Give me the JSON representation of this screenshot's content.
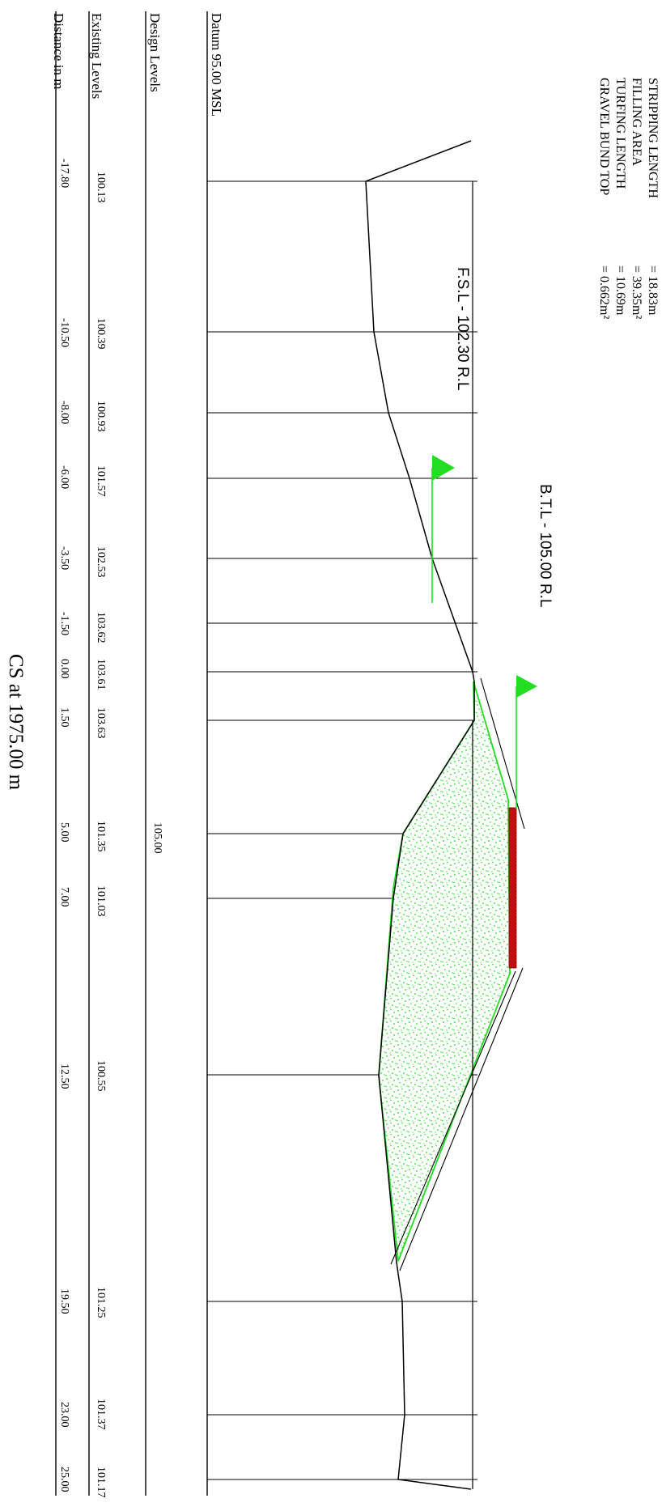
{
  "section": {
    "caption": "CS at 1975.00 m",
    "datum_label": "Datum 95.00 MSL",
    "rows": {
      "design_levels": "Design Levels",
      "existing_levels": "Existing Levels",
      "distance": "Distance in m"
    },
    "design_level_value": "105.00",
    "stations": [
      {
        "distance": "-17.80",
        "level": "100.13"
      },
      {
        "distance": "-10.50",
        "level": "100.39"
      },
      {
        "distance": "-8.00",
        "level": "100.93"
      },
      {
        "distance": "-6.00",
        "level": "101.57"
      },
      {
        "distance": "-3.50",
        "level": "102.53"
      },
      {
        "distance": "-1.50",
        "level": "103.62"
      },
      {
        "distance": "0.00",
        "level": "103.61"
      },
      {
        "distance": "1.50",
        "level": "103.63"
      },
      {
        "distance": "5.00",
        "level": "101.35"
      },
      {
        "distance": "7.00",
        "level": "101.03"
      },
      {
        "distance": "12.50",
        "level": "100.55"
      },
      {
        "distance": "19.50",
        "level": "101.25"
      },
      {
        "distance": "23.00",
        "level": "101.37"
      },
      {
        "distance": "25.00",
        "level": "101.17"
      }
    ],
    "fsl_label": "F.S.L - 102.30 R.L",
    "btl_label": "B.T.L - 105.00 R.L",
    "quantities": [
      {
        "name": "STRIPPING LENGTH",
        "value": "= 18.83m"
      },
      {
        "name": "FILLING AREA",
        "value": "= 39.35m²"
      },
      {
        "name": "TURFING LENGTH",
        "value": "= 10.69m"
      },
      {
        "name": "GRAVEL BUND TOP",
        "value": "= 0.662m²"
      }
    ],
    "colors": {
      "fill_green": "#22dd22",
      "fsl_marker": "#22dd22",
      "gravel_red": "#cc1111",
      "line": "#000000"
    }
  }
}
